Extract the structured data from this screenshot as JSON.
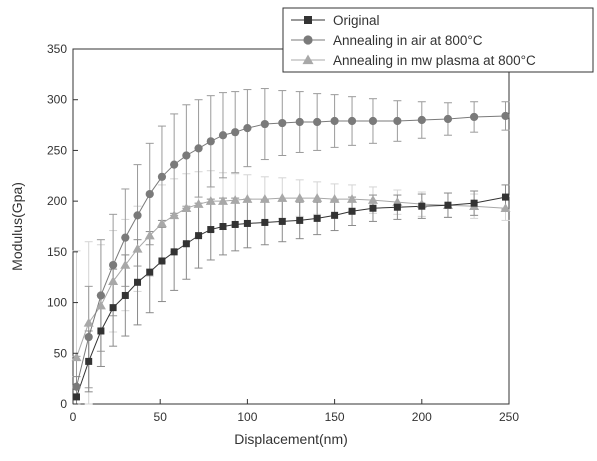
{
  "chart_data": {
    "type": "line",
    "xlabel": "Displacement(nm)",
    "ylabel": "Modulus(Gpa)",
    "xlim": [
      0,
      250
    ],
    "ylim": [
      0,
      350
    ],
    "xticks": [
      0,
      50,
      100,
      150,
      200,
      250
    ],
    "yticks": [
      0,
      50,
      100,
      150,
      200,
      250,
      300,
      350
    ],
    "grid": false,
    "legend_position": "top-right",
    "series": [
      {
        "name": "Original",
        "marker": "square",
        "color": "#333333",
        "x": [
          2,
          9,
          16,
          23,
          30,
          37,
          44,
          51,
          58,
          65,
          72,
          79,
          86,
          93,
          100,
          110,
          120,
          130,
          140,
          150,
          160,
          172,
          186,
          200,
          215,
          230,
          248
        ],
        "y": [
          7,
          42,
          72,
          95,
          107,
          120,
          130,
          141,
          150,
          158,
          166,
          172,
          175,
          177,
          178,
          179,
          180,
          181,
          183,
          186,
          190,
          193,
          194,
          195,
          196,
          198,
          204
        ],
        "err": [
          20,
          30,
          35,
          38,
          40,
          42,
          40,
          40,
          38,
          35,
          32,
          30,
          28,
          26,
          24,
          22,
          20,
          18,
          16,
          15,
          14,
          13,
          12,
          12,
          12,
          12,
          12
        ]
      },
      {
        "name": "Annealing in air at 800°C",
        "marker": "circle",
        "color": "#7a7a7a",
        "x": [
          2,
          9,
          16,
          23,
          30,
          37,
          44,
          51,
          58,
          65,
          72,
          79,
          86,
          93,
          100,
          110,
          120,
          130,
          140,
          150,
          160,
          172,
          186,
          200,
          215,
          230,
          248
        ],
        "y": [
          17,
          66,
          107,
          137,
          164,
          186,
          207,
          224,
          236,
          245,
          252,
          259,
          265,
          268,
          272,
          276,
          277,
          278,
          278,
          279,
          279,
          279,
          279,
          280,
          281,
          283,
          284
        ],
        "err": [
          30,
          50,
          55,
          50,
          48,
          50,
          50,
          50,
          50,
          50,
          48,
          45,
          42,
          40,
          38,
          35,
          32,
          30,
          28,
          26,
          24,
          22,
          20,
          18,
          16,
          15,
          14
        ]
      },
      {
        "name": "Annealing in mw plasma at 800°C",
        "marker": "triangle",
        "color": "#a8a8a8",
        "x": [
          2,
          9,
          16,
          23,
          30,
          37,
          44,
          51,
          58,
          65,
          72,
          79,
          86,
          93,
          100,
          110,
          120,
          130,
          140,
          150,
          160,
          172,
          186,
          200,
          215,
          230,
          248
        ],
        "y": [
          46,
          80,
          97,
          121,
          137,
          153,
          166,
          178,
          186,
          193,
          197,
          200,
          200,
          201,
          202,
          202,
          203,
          203,
          203,
          202,
          202,
          201,
          199,
          197,
          196,
          195,
          193
        ],
        "err": [
          105,
          80,
          60,
          50,
          45,
          42,
          40,
          38,
          36,
          34,
          32,
          30,
          28,
          26,
          24,
          22,
          20,
          18,
          16,
          15,
          14,
          13,
          12,
          12,
          12,
          12,
          12
        ]
      }
    ]
  }
}
